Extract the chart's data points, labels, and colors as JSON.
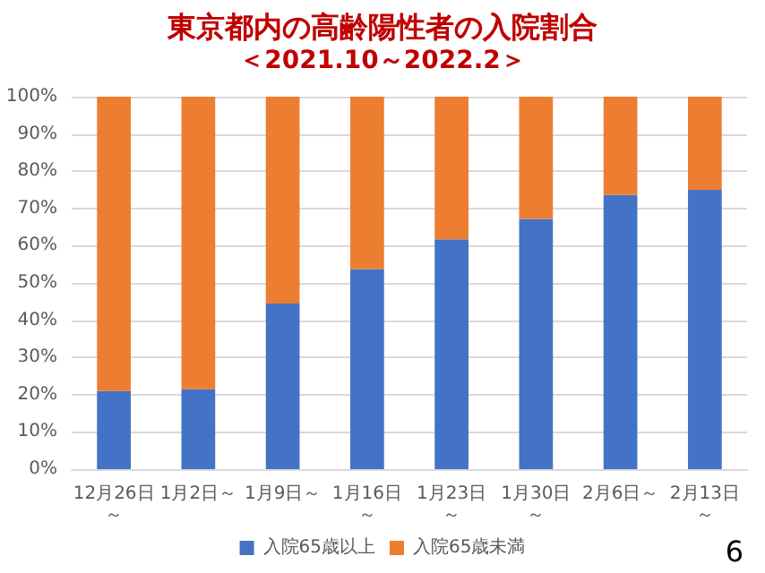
{
  "chart_data": {
    "type": "bar",
    "title": "東京都内の高齢陽性者の入院割合",
    "subtitle": "＜2021.10～2022.2＞",
    "categories": [
      "12月26日～",
      "1月2日～",
      "1月9日～",
      "1月16日～",
      "1月23日～",
      "1月30日～",
      "2月6日～",
      "2月13日～"
    ],
    "series": [
      {
        "name": "入院65歳以上",
        "color": "#4472c4",
        "values": [
          21,
          21.5,
          44.5,
          53.7,
          61.7,
          67.2,
          73.6,
          75
        ]
      },
      {
        "name": "入院65歳未満",
        "color": "#ed7d31",
        "values": [
          79,
          78.5,
          55.5,
          46.3,
          38.3,
          32.8,
          26.4,
          25
        ]
      }
    ],
    "stacked": true,
    "ylim": [
      0,
      100
    ],
    "yticks": [
      {
        "value": 0,
        "label": "0%"
      },
      {
        "value": 10,
        "label": "10%"
      },
      {
        "value": 20,
        "label": "20%"
      },
      {
        "value": 30,
        "label": "30%"
      },
      {
        "value": 40,
        "label": "40%"
      },
      {
        "value": 50,
        "label": "50%"
      },
      {
        "value": 60,
        "label": "60%"
      },
      {
        "value": 70,
        "label": "70%"
      },
      {
        "value": 80,
        "label": "80%"
      },
      {
        "value": 90,
        "label": "90%"
      },
      {
        "value": 100,
        "label": "100%"
      }
    ],
    "grid": "y",
    "legend": "bottom",
    "annotations": [
      "6"
    ]
  }
}
